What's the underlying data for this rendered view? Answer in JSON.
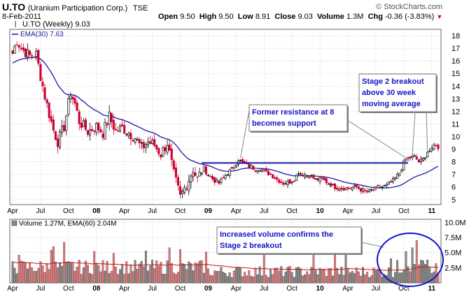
{
  "header": {
    "symbol": "U.TO",
    "company": "(Uranium Participation Corp.)",
    "exchange": "TSE",
    "copyright": "© StockCharts.com",
    "date": "8-Feb-2011",
    "open_label": "Open",
    "open": "9.50",
    "high_label": "High",
    "high": "9.50",
    "low_label": "Low",
    "low": "8.91",
    "close_label": "Close",
    "close": "9.03",
    "volume_label": "Volume",
    "volume": "1.3M",
    "chg_label": "Chg",
    "chg": "-0.36 (-3.83%)",
    "chg_arrow": "▼"
  },
  "colors": {
    "up": "#000000",
    "down": "#cc0033",
    "ema": "#1a1aa8",
    "support": "#1a1aa8",
    "annotation_text": "#1515c8",
    "volume_up": "#888888",
    "volume_down": "#e07a7a",
    "volume_ema": "#cc1111",
    "grid": "#d0d0d0"
  },
  "chart_data": [
    {
      "type": "candlestick",
      "title": "U.TO (Weekly) 9.03",
      "legend": [
        "U.TO (Weekly) 9.03",
        "EMA(30) 7.63"
      ],
      "ylim": [
        4.6,
        18.5
      ],
      "y_ticks": [
        5,
        6,
        7,
        8,
        9,
        10,
        11,
        12,
        13,
        14,
        15,
        16,
        17,
        18
      ],
      "x_tick_labels": [
        {
          "week": 0,
          "label": "Apr",
          "bold": false
        },
        {
          "week": 13,
          "label": "Jul",
          "bold": false
        },
        {
          "week": 26,
          "label": "Oct",
          "bold": false
        },
        {
          "week": 39,
          "label": "08",
          "bold": true
        },
        {
          "week": 52,
          "label": "Apr",
          "bold": false
        },
        {
          "week": 65,
          "label": "Jul",
          "bold": false
        },
        {
          "week": 78,
          "label": "Oct",
          "bold": false
        },
        {
          "week": 91,
          "label": "09",
          "bold": true
        },
        {
          "week": 104,
          "label": "Apr",
          "bold": false
        },
        {
          "week": 117,
          "label": "Jul",
          "bold": false
        },
        {
          "week": 130,
          "label": "Oct",
          "bold": false
        },
        {
          "week": 143,
          "label": "10",
          "bold": true
        },
        {
          "week": 156,
          "label": "Apr",
          "bold": false
        },
        {
          "week": 169,
          "label": "Jul",
          "bold": false
        },
        {
          "week": 182,
          "label": "Oct",
          "bold": false
        },
        {
          "week": 195,
          "label": "11",
          "bold": true
        }
      ],
      "close_anchors": [
        [
          0,
          16.6
        ],
        [
          2,
          17.6
        ],
        [
          4,
          17.0
        ],
        [
          8,
          16.4
        ],
        [
          11,
          16.5
        ],
        [
          13,
          14.8
        ],
        [
          15,
          13.2
        ],
        [
          17,
          11.8
        ],
        [
          19,
          10.5
        ],
        [
          21,
          9.6
        ],
        [
          24,
          10.8
        ],
        [
          27,
          13.5
        ],
        [
          29,
          12.6
        ],
        [
          31,
          11.2
        ],
        [
          35,
          10.4
        ],
        [
          39,
          10.8
        ],
        [
          42,
          10.3
        ],
        [
          45,
          11.6
        ],
        [
          48,
          10.4
        ],
        [
          51,
          10.7
        ],
        [
          54,
          10.3
        ],
        [
          57,
          9.9
        ],
        [
          60,
          9.1
        ],
        [
          63,
          9.6
        ],
        [
          66,
          9.3
        ],
        [
          69,
          8.6
        ],
        [
          72,
          9.5
        ],
        [
          75,
          7.0
        ],
        [
          78,
          5.2
        ],
        [
          80,
          5.9
        ],
        [
          82,
          6.6
        ],
        [
          84,
          7.4
        ],
        [
          86,
          6.6
        ],
        [
          88,
          7.3
        ],
        [
          90,
          7.2
        ],
        [
          92,
          6.8
        ],
        [
          94,
          6.5
        ],
        [
          96,
          6.3
        ],
        [
          98,
          6.7
        ],
        [
          100,
          7.1
        ],
        [
          103,
          7.6
        ],
        [
          105,
          8.2
        ],
        [
          107,
          7.9
        ],
        [
          109,
          7.7
        ],
        [
          111,
          7.6
        ],
        [
          113,
          7.4
        ],
        [
          115,
          7.5
        ],
        [
          117,
          7.2
        ],
        [
          120,
          7.0
        ],
        [
          123,
          6.6
        ],
        [
          126,
          6.3
        ],
        [
          129,
          6.4
        ],
        [
          131,
          6.6
        ],
        [
          133,
          7.2
        ],
        [
          135,
          7.0
        ],
        [
          138,
          6.9
        ],
        [
          141,
          6.6
        ],
        [
          144,
          6.6
        ],
        [
          147,
          6.3
        ],
        [
          150,
          6.0
        ],
        [
          153,
          5.9
        ],
        [
          156,
          5.9
        ],
        [
          160,
          6.0
        ],
        [
          163,
          5.7
        ],
        [
          165,
          5.6
        ],
        [
          168,
          5.8
        ],
        [
          171,
          6.0
        ],
        [
          174,
          6.1
        ],
        [
          177,
          6.5
        ],
        [
          180,
          7.1
        ],
        [
          182,
          7.9
        ],
        [
          184,
          8.3
        ],
        [
          187,
          8.4
        ],
        [
          189,
          8.0
        ],
        [
          191,
          8.2
        ],
        [
          193,
          8.8
        ],
        [
          195,
          8.9
        ],
        [
          196,
          9.3
        ],
        [
          197,
          9.4
        ],
        [
          198,
          9.03
        ]
      ],
      "support_level": 7.9,
      "ema30_last": 7.63
    },
    {
      "type": "bar",
      "title": "Volume 1.27M, EMA(60) 2.04M",
      "legend": [
        "Volume 1.27M, EMA(60) 2.04M"
      ],
      "unit": "M",
      "ylim": [
        0,
        10.5
      ],
      "y_tick_labels": [
        {
          "value": 2.5,
          "label": "2.5M"
        },
        {
          "value": 5,
          "label": "5.0M"
        },
        {
          "value": 7.5,
          "label": "7.5M"
        },
        {
          "value": 10,
          "label": "10.0M"
        }
      ],
      "spikes": [
        {
          "week": 3,
          "value": 4.6
        },
        {
          "week": 18,
          "value": 5.4
        },
        {
          "week": 19,
          "value": 6.0
        },
        {
          "week": 24,
          "value": 6.7
        },
        {
          "week": 38,
          "value": 5.2
        },
        {
          "week": 47,
          "value": 4.9
        },
        {
          "week": 62,
          "value": 5.3
        },
        {
          "week": 73,
          "value": 5.8
        },
        {
          "week": 78,
          "value": 5.5
        },
        {
          "week": 90,
          "value": 5.1
        },
        {
          "week": 117,
          "value": 4.9
        },
        {
          "week": 140,
          "value": 5.0
        },
        {
          "week": 150,
          "value": 5.2
        },
        {
          "week": 155,
          "value": 6.8
        },
        {
          "week": 176,
          "value": 4.0
        },
        {
          "week": 183,
          "value": 5.2
        },
        {
          "week": 186,
          "value": 5.8
        },
        {
          "week": 188,
          "value": 7.0
        },
        {
          "week": 193,
          "value": 3.8
        },
        {
          "week": 197,
          "value": 3.2
        }
      ]
    }
  ],
  "annotations": {
    "support": "Former resistance at 8\nbecomes support",
    "breakout": "Stage 2 breakout\nabove 30 week\nmoving average",
    "volume": "Increased volume confirms the\nStage 2 breakout"
  }
}
